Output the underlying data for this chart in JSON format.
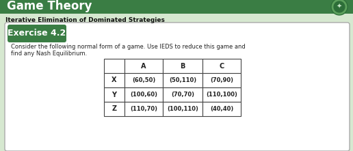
{
  "header_title": "Game Theory",
  "header_bg": "#3a7d44",
  "header_text_color": "#ffffff",
  "subtitle": "Iterative Elimination of Dominated Strategies",
  "subtitle_color": "#111111",
  "subtitle_fontsize": 6.5,
  "subtitle_bold": true,
  "exercise_label": "Exercise 4.2",
  "exercise_bg": "#3a7d44",
  "exercise_text_color": "#ffffff",
  "body_text_line1": "Consider the following normal form of a game. Use IEDS to reduce this game and",
  "body_text_line2": "find any Nash Equilibrium.",
  "body_text_color": "#222222",
  "outer_bg": "#d6e8d0",
  "card_bg": "#ffffff",
  "card_border": "#aaaaaa",
  "table_col_headers": [
    "",
    "A",
    "B",
    "C"
  ],
  "table_row_headers": [
    "X",
    "Y",
    "Z"
  ],
  "table_data": [
    [
      "(60,50)",
      "(50,110)",
      "(70,90)"
    ],
    [
      "(100,60)",
      "(70,70)",
      "(110,100)"
    ],
    [
      "(110,70)",
      "(100,110)",
      "(40,40)"
    ]
  ],
  "table_cell_bg": "#ffffff",
  "table_text_color": "#222222",
  "table_border_color": "#444444",
  "fig_width": 5.16,
  "fig_height": 2.21,
  "dpi": 100
}
